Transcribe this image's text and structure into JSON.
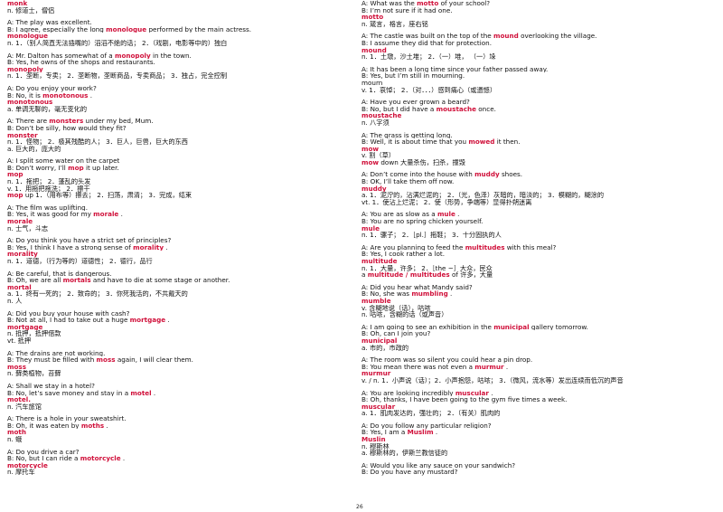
{
  "page_number": "26",
  "columns": [
    {
      "entries": [
        {
          "lines": [
            [
              {
                "t": "monk",
                "h": true
              }
            ],
            [
              {
                "t": "  n.   修道士，僧侣"
              }
            ]
          ]
        },
        {
          "lines": [
            [
              {
                "t": "A: The play was excellent."
              }
            ],
            [
              {
                "t": "B: I agree, especially the long "
              },
              {
                "t": "monologue",
                "h": true
              },
              {
                "t": "   performed by the main actress."
              }
            ],
            [
              {
                "t": "monologue",
                "h": true
              }
            ],
            [
              {
                "t": "  n.   1．（别人简直无法插嘴的）滔滔不绝的话；  2．（戏剧，电影等中的）独白"
              }
            ]
          ]
        },
        {
          "lines": [
            [
              {
                "t": "A: Mr. Dalton has somewhat of a "
              },
              {
                "t": "monopoly",
                "h": true
              },
              {
                "t": "    in the town."
              }
            ],
            [
              {
                "t": "B: Yes, he owns of the shops and restaurants."
              }
            ],
            [
              {
                "t": "monopoly",
                "h": true
              }
            ],
            [
              {
                "t": "  n.   1．垄断，专卖； 2．垄断物，垄断商品，专卖商品； 3．独占，完全控制"
              }
            ]
          ]
        },
        {
          "lines": [
            [
              {
                "t": "A: Do you enjoy your work?"
              }
            ],
            [
              {
                "t": "B: No, it is "
              },
              {
                "t": "monotonous",
                "h": true
              },
              {
                "t": "   ."
              }
            ],
            [
              {
                "t": "monotonous",
                "h": true
              }
            ],
            [
              {
                "t": "  a.   单调无聊的，毫无变化的"
              }
            ]
          ]
        },
        {
          "lines": [
            [
              {
                "t": "A: There are "
              },
              {
                "t": "monsters",
                "h": true
              },
              {
                "t": "    under my bed, Mum."
              }
            ],
            [
              {
                "t": "B: Don’t be silly, how would they fit?"
              }
            ],
            [
              {
                "t": "monster",
                "h": true
              }
            ],
            [
              {
                "t": "  n.   1．怪物； 2．极其残酷的人； 3．巨人，巨兽，巨大的东西"
              }
            ],
            [
              {
                "t": "  a.   巨大的，庞大的"
              }
            ]
          ]
        },
        {
          "lines": [
            [
              {
                "t": "A: I split some water on the carpet"
              }
            ],
            [
              {
                "t": "B: Don’t worry, I’ll "
              },
              {
                "t": "mop",
                "h": true
              },
              {
                "t": "    it up later."
              }
            ],
            [
              {
                "t": "mop",
                "h": true
              }
            ],
            [
              {
                "t": "  n.   1．拖把； 2．蓬乱的头发"
              }
            ],
            [
              {
                "t": "  v.   1．用拖把拖洗； 2．擦干"
              }
            ],
            [
              {
                "t": "mop",
                "h": true
              },
              {
                "t": "    up    1．（用布等）擦去； 2．扫荡，肃清； 3．完成，结束"
              }
            ]
          ]
        },
        {
          "lines": [
            [
              {
                "t": "A: The film was uplifting."
              }
            ],
            [
              {
                "t": "B: Yes, it was good for my "
              },
              {
                "t": "morale",
                "h": true
              },
              {
                "t": "   ."
              }
            ],
            [
              {
                "t": "morale",
                "h": true
              }
            ],
            [
              {
                "t": "  n.   士气，斗志"
              }
            ]
          ]
        },
        {
          "lines": [
            [
              {
                "t": "A: Do you think you have a strict set of principles?"
              }
            ],
            [
              {
                "t": "B: Yes, I think I have a strong sense of "
              },
              {
                "t": "morality",
                "h": true
              },
              {
                "t": "  ."
              }
            ],
            [
              {
                "t": "morality",
                "h": true
              }
            ],
            [
              {
                "t": "  n.   1．道德，（行为等的）道德性； 2．德行，品行"
              }
            ]
          ]
        },
        {
          "lines": [
            [
              {
                "t": "A: Be careful, that is dangerous."
              }
            ],
            [
              {
                "t": "B: Oh, we are all "
              },
              {
                "t": "mortals",
                "h": true
              },
              {
                "t": "    and have to die at some stage or another."
              }
            ],
            [
              {
                "t": "mortal",
                "h": true
              }
            ],
            [
              {
                "t": "  a.   1．终有一死的； 2．致命的； 3．你死我活的，不共戴天的"
              }
            ],
            [
              {
                "t": "  n.   人"
              }
            ]
          ]
        },
        {
          "lines": [
            [
              {
                "t": "A: Did you buy your house with cash?"
              }
            ],
            [
              {
                "t": "B: Not at all, I had to take out a huge "
              },
              {
                "t": "mortgage",
                "h": true
              },
              {
                "t": "   ."
              }
            ],
            [
              {
                "t": "mortgage",
                "h": true
              }
            ],
            [
              {
                "t": "  n.   抵押，抵押借款"
              }
            ],
            [
              {
                "t": "vt.   抵押"
              }
            ]
          ]
        },
        {
          "lines": [
            [
              {
                "t": "A: The drains are not working."
              }
            ],
            [
              {
                "t": "B: They must be filled with "
              },
              {
                "t": "moss",
                "h": true
              },
              {
                "t": "    again, I will clear them."
              }
            ],
            [
              {
                "t": "moss",
                "h": true
              }
            ],
            [
              {
                "t": "  n.   藓类植物，苔藓"
              }
            ]
          ]
        },
        {
          "lines": [
            [
              {
                "t": "A: Shall we stay in a hotel?"
              }
            ],
            [
              {
                "t": "B: No, let’s save money and stay in a "
              },
              {
                "t": "motel",
                "h": true
              },
              {
                "t": "   ."
              }
            ],
            [
              {
                "t": "motel.",
                "h": true
              }
            ],
            [
              {
                "t": "  n.   汽车旅馆"
              }
            ]
          ]
        },
        {
          "lines": [
            [
              {
                "t": "A: There is a hole in your sweatshirt."
              }
            ],
            [
              {
                "t": "B: Oh, it was eaten by "
              },
              {
                "t": "moths",
                "h": true
              },
              {
                "t": "   ."
              }
            ],
            [
              {
                "t": "moth",
                "h": true
              }
            ],
            [
              {
                "t": "  n.   蛾"
              }
            ]
          ]
        },
        {
          "lines": [
            [
              {
                "t": "A: Do you drive a car?"
              }
            ],
            [
              {
                "t": "B: No, but I can ride a "
              },
              {
                "t": "motorcycle",
                "h": true
              },
              {
                "t": "   ."
              }
            ],
            [
              {
                "t": "motorcycle",
                "h": true
              }
            ],
            [
              {
                "t": "  n.   摩托车"
              }
            ]
          ]
        }
      ]
    },
    {
      "entries": [
        {
          "lines": [
            [
              {
                "t": "A: What was the "
              },
              {
                "t": "motto",
                "h": true
              },
              {
                "t": "    of your school?"
              }
            ],
            [
              {
                "t": "B: I’m not sure if it had one."
              }
            ],
            [
              {
                "t": "motto",
                "h": true
              }
            ],
            [
              {
                "t": "  n.   箴言，格言，座右铭"
              }
            ]
          ]
        },
        {
          "lines": [
            [
              {
                "t": "A: The castle was built on the top of the "
              },
              {
                "t": "mound",
                "h": true
              },
              {
                "t": "    overlooking the village."
              }
            ],
            [
              {
                "t": "B: I assume they did that for protection."
              }
            ],
            [
              {
                "t": "mound",
                "h": true
              }
            ],
            [
              {
                "t": "  n.   1．土墩，沙土堆； 2．（一）堆， （一）垛"
              }
            ]
          ]
        },
        {
          "lines": [
            [
              {
                "t": "A: It has been a long time since your father passed away."
              }
            ],
            [
              {
                "t": "B: Yes, but I’m still in mourning."
              }
            ],
            [
              {
                "t": "mourn"
              }
            ],
            [
              {
                "t": "v.   1．哀悼； 2．（对．．．）感到痛心（或遗憾）"
              }
            ]
          ]
        },
        {
          "lines": [
            [
              {
                "t": "A: Have you ever grown a beard?"
              }
            ],
            [
              {
                "t": "B: No, but I did have a "
              },
              {
                "t": "moustache",
                "h": true
              },
              {
                "t": "    once."
              }
            ],
            [
              {
                "t": "moustache",
                "h": true
              }
            ],
            [
              {
                "t": "  n.   八字须"
              }
            ]
          ]
        },
        {
          "lines": [
            [
              {
                "t": "A: The grass is getting long."
              }
            ],
            [
              {
                "t": "B: Well, it is about time that you "
              },
              {
                "t": "mowed",
                "h": true
              },
              {
                "t": "    it then."
              }
            ],
            [
              {
                "t": "mow",
                "h": true
              }
            ],
            [
              {
                "t": "  v.   割（草）"
              }
            ],
            [
              {
                "t": "mow",
                "h": true
              },
              {
                "t": "    down    大量杀伤，扫杀，撞毁"
              }
            ]
          ]
        },
        {
          "lines": [
            [
              {
                "t": "A: Don’t come into the house with "
              },
              {
                "t": "muddy",
                "h": true
              },
              {
                "t": "    shoes."
              }
            ],
            [
              {
                "t": "B: OK, I’ll take them off now."
              }
            ],
            [
              {
                "t": "muddy",
                "h": true
              }
            ],
            [
              {
                "t": "  a.   1．泥泞的，沾满烂泥的； 2．（光，色泽）灰暗的，暗淡的； 3．模糊的，糊涂的"
              }
            ],
            [
              {
                "t": "vt.   1．使沾上烂泥； 2．使（形势，争端等）显得扑朔迷离"
              }
            ]
          ]
        },
        {
          "lines": [
            [
              {
                "t": "A: You are as slow as a "
              },
              {
                "t": "mule",
                "h": true
              },
              {
                "t": "   ."
              }
            ],
            [
              {
                "t": "B: You are no spring chicken yourself."
              }
            ],
            [
              {
                "t": "mule",
                "h": true
              }
            ],
            [
              {
                "t": "  n.   1．骡子； 2．［pl.］拖鞋； 3．十分固执的人"
              }
            ]
          ]
        },
        {
          "lines": [
            [
              {
                "t": "A: Are you planning to feed the "
              },
              {
                "t": "multitudes",
                "h": true
              },
              {
                "t": "    with this meal?"
              }
            ],
            [
              {
                "t": "B: Yes, I cook rather a lot."
              }
            ],
            [
              {
                "t": "multitude",
                "h": true
              }
            ],
            [
              {
                "t": "  n.   1．大量，许多； 2．［the ~］大众，民众"
              }
            ],
            [
              {
                "t": "a "
              },
              {
                "t": "multitude / multitudes",
                "h": true
              },
              {
                "t": "    of   许多，大量"
              }
            ]
          ]
        },
        {
          "lines": [
            [
              {
                "t": "A: Did you hear what Mandy said?"
              }
            ],
            [
              {
                "t": "B: No, she was "
              },
              {
                "t": "mumbling",
                "h": true
              },
              {
                "t": "   ."
              }
            ],
            [
              {
                "t": "mumble",
                "h": true
              }
            ],
            [
              {
                "t": "  v.   含糊地说（话），咕哝"
              }
            ],
            [
              {
                "t": "  n.   咕哝，含糊的话（或声音）"
              }
            ]
          ]
        },
        {
          "lines": [
            [
              {
                "t": "A: I am going to see an exhibition in the "
              },
              {
                "t": "municipal",
                "h": true
              },
              {
                "t": "    gallery tomorrow."
              }
            ],
            [
              {
                "t": "B: Oh, can I join you?"
              }
            ],
            [
              {
                "t": "municipal",
                "h": true
              }
            ],
            [
              {
                "t": "a.   市的，市政的"
              }
            ]
          ]
        },
        {
          "lines": [
            [
              {
                "t": "A: The room was so silent you could hear a pin drop."
              }
            ],
            [
              {
                "t": "B: You mean there was not even a "
              },
              {
                "t": "murmur",
                "h": true
              },
              {
                "t": "   ."
              }
            ],
            [
              {
                "t": "murmur",
                "h": true
              }
            ],
            [
              {
                "t": "  v. / n.   1．小声说（话）；2．小声抱怨，咕哝； 3．（微风，流水等）发出连续而低沉的声音"
              }
            ]
          ]
        },
        {
          "lines": [
            [
              {
                "t": "A: You are looking incredibly "
              },
              {
                "t": "muscular",
                "h": true
              },
              {
                "t": "   ."
              }
            ],
            [
              {
                "t": "B: Oh, thanks, I have been going to the gym five times a week."
              }
            ],
            [
              {
                "t": "muscular",
                "h": true
              }
            ],
            [
              {
                "t": "  a.   1．肌肉发达的，强壮的； 2．（有关）肌肉的"
              }
            ]
          ]
        },
        {
          "lines": [
            [
              {
                "t": "A: Do you follow any particular religion?"
              }
            ],
            [
              {
                "t": "B: Yes, I am a "
              },
              {
                "t": "Muslim",
                "h": true
              },
              {
                "t": "  ."
              }
            ],
            [
              {
                "t": "Muslin",
                "h": true
              }
            ],
            [
              {
                "t": "  n.   穆斯林"
              }
            ],
            [
              {
                "t": "a.   穆斯林的，伊斯兰教信徒的"
              }
            ]
          ]
        },
        {
          "lines": [
            [
              {
                "t": "A: Would you like any sauce on your sandwich?"
              }
            ],
            [
              {
                "t": "B: Do you have any mustard?"
              }
            ]
          ]
        }
      ]
    }
  ]
}
